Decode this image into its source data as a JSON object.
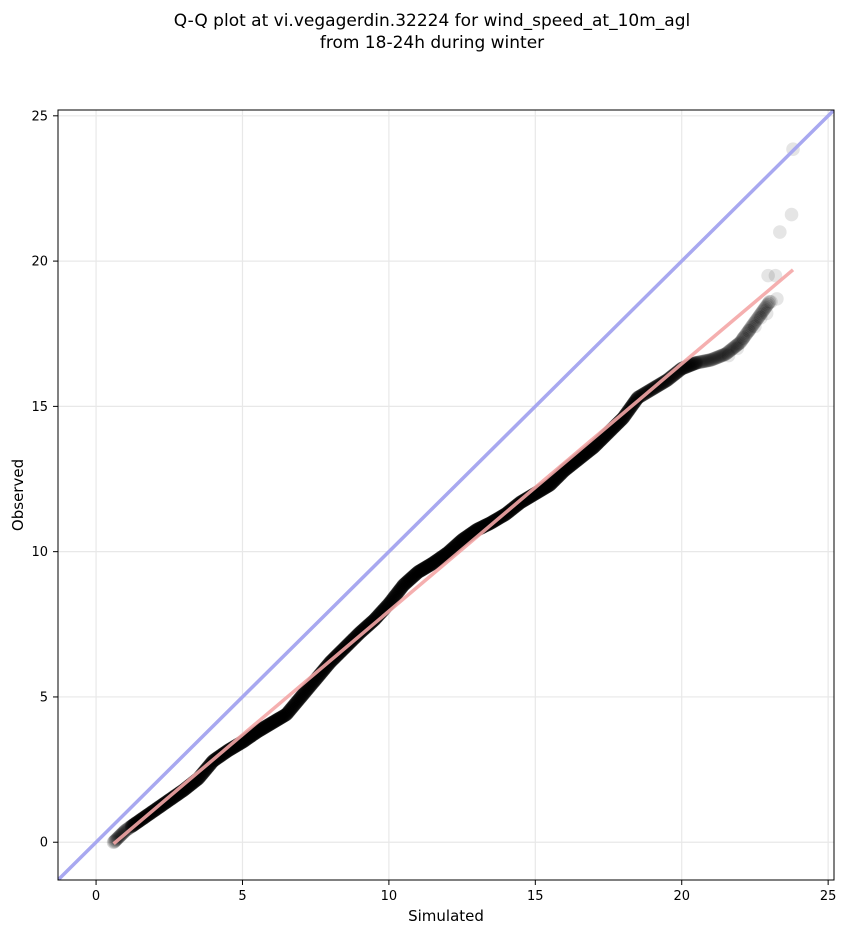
{
  "chart_data": {
    "type": "scatter",
    "title_line1": "Q-Q plot at vi.vegagerdin.32224 for wind_speed_at_10m_agl",
    "title_line2": "from 18-24h during winter",
    "xlabel": "Simulated",
    "ylabel": "Observed",
    "xlim": [
      -1.3,
      25.2
    ],
    "ylim": [
      -1.3,
      25.2
    ],
    "x_ticks": [
      0,
      5,
      10,
      15,
      20,
      25
    ],
    "y_ticks": [
      0,
      5,
      10,
      15,
      20,
      25
    ],
    "x_tick_labels": [
      "0",
      "5",
      "10",
      "15",
      "20",
      "25"
    ],
    "y_tick_labels": [
      "0",
      "5",
      "10",
      "15",
      "20",
      "25"
    ],
    "grid": true,
    "identity_line": {
      "color": "#a8a8f0",
      "from": [
        -1.3,
        -1.3
      ],
      "to": [
        25.2,
        25.2
      ]
    },
    "fit_line": {
      "color": "#f4a6a6",
      "from": [
        0.6,
        -0.05
      ],
      "to": [
        23.8,
        19.7
      ]
    },
    "point_color": "#000000",
    "quantile_curve": [
      [
        0.6,
        0.0
      ],
      [
        1.0,
        0.4
      ],
      [
        1.5,
        0.75
      ],
      [
        2.0,
        1.1
      ],
      [
        2.5,
        1.45
      ],
      [
        3.0,
        1.8
      ],
      [
        3.5,
        2.2
      ],
      [
        4.0,
        2.8
      ],
      [
        4.5,
        3.15
      ],
      [
        5.0,
        3.45
      ],
      [
        5.5,
        3.8
      ],
      [
        6.0,
        4.1
      ],
      [
        6.5,
        4.4
      ],
      [
        7.0,
        5.0
      ],
      [
        7.5,
        5.6
      ],
      [
        8.0,
        6.2
      ],
      [
        8.5,
        6.7
      ],
      [
        9.0,
        7.2
      ],
      [
        9.5,
        7.65
      ],
      [
        10.0,
        8.2
      ],
      [
        10.5,
        8.85
      ],
      [
        11.0,
        9.3
      ],
      [
        11.5,
        9.6
      ],
      [
        12.0,
        9.95
      ],
      [
        12.5,
        10.4
      ],
      [
        13.0,
        10.75
      ],
      [
        13.5,
        11.0
      ],
      [
        14.0,
        11.3
      ],
      [
        14.5,
        11.7
      ],
      [
        15.0,
        12.0
      ],
      [
        15.5,
        12.3
      ],
      [
        16.0,
        12.8
      ],
      [
        16.5,
        13.2
      ],
      [
        17.0,
        13.6
      ],
      [
        17.5,
        14.1
      ],
      [
        18.0,
        14.6
      ],
      [
        18.5,
        15.3
      ],
      [
        19.0,
        15.6
      ],
      [
        19.5,
        15.9
      ],
      [
        20.0,
        16.3
      ],
      [
        20.5,
        16.5
      ],
      [
        21.0,
        16.6
      ],
      [
        21.5,
        16.8
      ],
      [
        22.0,
        17.2
      ],
      [
        22.5,
        17.9
      ],
      [
        23.0,
        18.6
      ]
    ],
    "tail_points": [
      [
        21.6,
        16.75
      ],
      [
        21.9,
        17.0
      ],
      [
        22.1,
        17.35
      ],
      [
        22.3,
        17.6
      ],
      [
        22.5,
        17.75
      ],
      [
        22.7,
        18.05
      ],
      [
        22.9,
        18.2
      ],
      [
        23.05,
        18.6
      ],
      [
        23.25,
        18.7
      ],
      [
        22.95,
        19.5
      ],
      [
        23.2,
        19.5
      ],
      [
        23.35,
        21.0
      ],
      [
        23.75,
        21.6
      ],
      [
        23.8,
        23.85
      ]
    ]
  }
}
